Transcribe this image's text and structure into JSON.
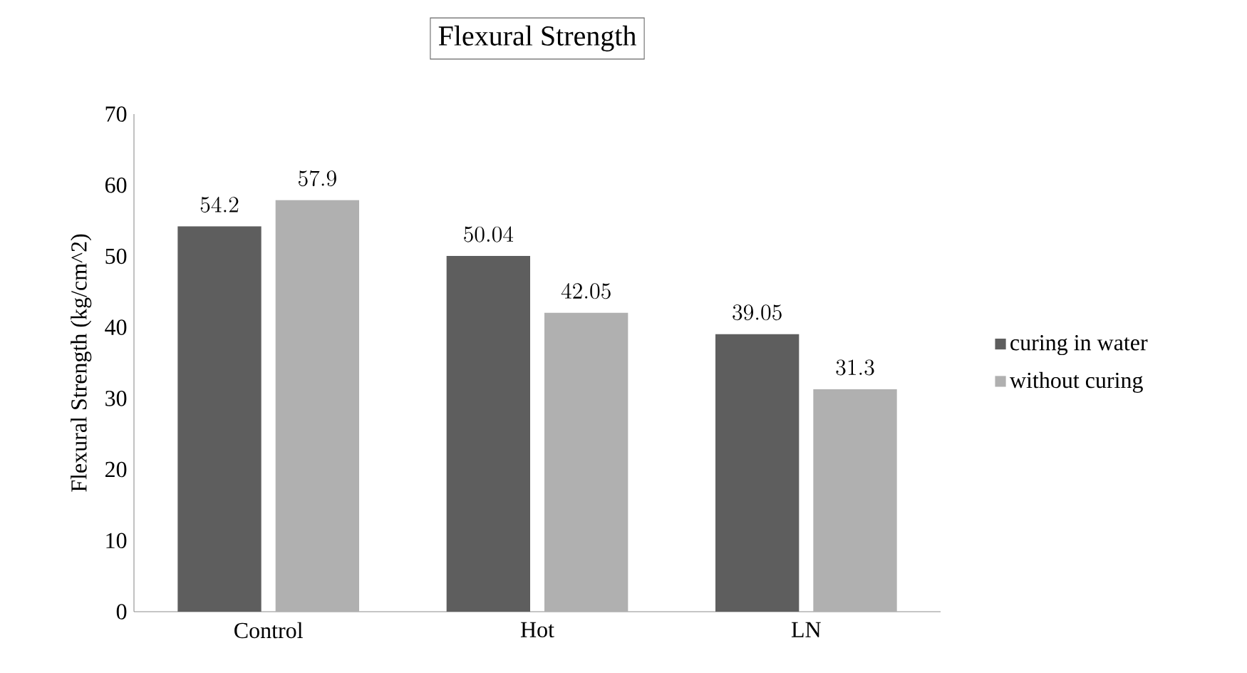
{
  "chart_data": {
    "type": "bar",
    "title": "Flexural Strength",
    "ylabel": "Flexural Strength (kg/cm^2)",
    "categories": [
      "Control",
      "Hot",
      "LN"
    ],
    "series": [
      {
        "name": "curing in water",
        "color": "#5e5e5e",
        "values": [
          54.2,
          50.04,
          39.05
        ]
      },
      {
        "name": "without curing",
        "color": "#b0b0b0",
        "values": [
          57.9,
          42.05,
          31.3
        ]
      }
    ],
    "ylim": [
      0,
      70
    ],
    "yticks": [
      0,
      10,
      20,
      30,
      40,
      50,
      60,
      70
    ],
    "data_labels": true,
    "grid": false,
    "legend": "right"
  }
}
